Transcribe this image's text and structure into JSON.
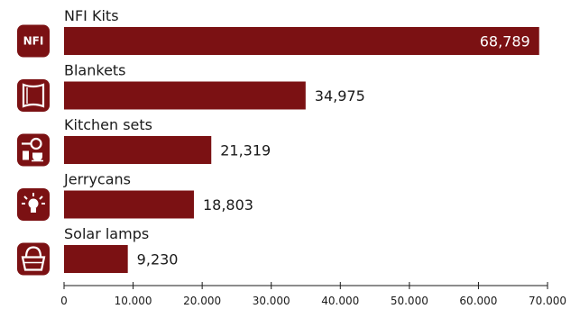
{
  "chart_data": {
    "type": "bar",
    "orientation": "horizontal",
    "categories": [
      "NFI Kits",
      "Blankets",
      "Kitchen sets",
      "Jerrycans",
      "Solar lamps"
    ],
    "values": [
      68789,
      34975,
      21319,
      18803,
      9230
    ],
    "value_labels": [
      "68,789",
      "34,975",
      "21,319",
      "18,803",
      "9,230"
    ],
    "xlim": [
      0,
      70000
    ],
    "xticks": [
      0,
      10000,
      20000,
      30000,
      40000,
      50000,
      60000,
      70000
    ],
    "xtick_labels": [
      "0",
      "10.000",
      "20.000",
      "30.000",
      "40.000",
      "50.000",
      "60.000",
      "70.000"
    ],
    "icons": [
      "nfi-badge-icon",
      "blanket-icon",
      "kitchen-set-icon",
      "jerrycan-icon",
      "solar-lamp-icon"
    ],
    "nfi_icon_text": "NFI",
    "bar_color": "#7b1113",
    "icon_color": "#7b1113",
    "grid": false
  }
}
